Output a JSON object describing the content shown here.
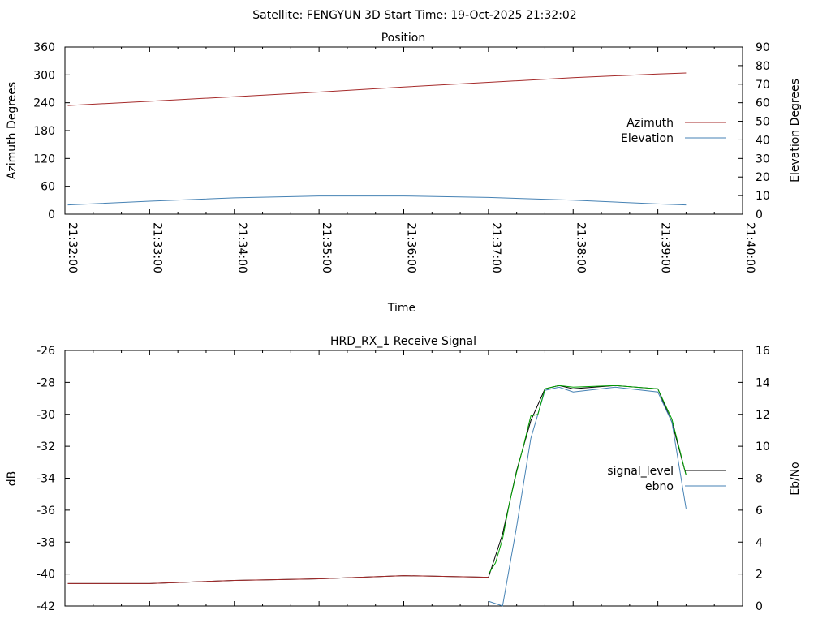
{
  "header": {
    "title": "Satellite: FENGYUN 3D    Start Time: 19-Oct-2025 21:32:02"
  },
  "chart_data": [
    {
      "type": "line",
      "title": "Position",
      "xlabel": "Time",
      "ylabel": "Azimuth Degrees",
      "y2label": "Elevation Degrees",
      "x_ticks": [
        "21:32:00",
        "21:33:00",
        "21:34:00",
        "21:35:00",
        "21:36:00",
        "21:37:00",
        "21:38:00",
        "21:39:00",
        "21:40:00"
      ],
      "xlim": [
        "21:32:00",
        "21:40:00"
      ],
      "ylim": [
        0,
        360
      ],
      "y_ticks": [
        "0",
        "60",
        "120",
        "180",
        "240",
        "300",
        "360"
      ],
      "y2lim": [
        0,
        90
      ],
      "y2_ticks": [
        "0",
        "10",
        "20",
        "30",
        "40",
        "50",
        "60",
        "70",
        "80",
        "90"
      ],
      "legend": "right",
      "series": [
        {
          "name": "Azimuth",
          "axis": "y1",
          "color": "#a52a2a",
          "x": [
            "21:32:02",
            "21:33:00",
            "21:34:00",
            "21:35:00",
            "21:36:00",
            "21:37:00",
            "21:38:00",
            "21:39:00",
            "21:39:20"
          ],
          "y": [
            234,
            243,
            253,
            263,
            274,
            284,
            294,
            302,
            304
          ]
        },
        {
          "name": "Elevation",
          "axis": "y2",
          "color": "#4682b4",
          "x": [
            "21:32:02",
            "21:33:00",
            "21:34:00",
            "21:35:00",
            "21:36:00",
            "21:37:00",
            "21:38:00",
            "21:39:00",
            "21:39:20"
          ],
          "y": [
            5,
            7,
            8.8,
            9.8,
            9.8,
            9,
            7.5,
            5.5,
            5
          ]
        }
      ]
    },
    {
      "type": "line",
      "title": "HRD_RX_1 Receive Signal",
      "xlabel": "",
      "ylabel": "dB",
      "y2label": "Eb/No",
      "xlim": [
        "21:32:00",
        "21:40:00"
      ],
      "ylim": [
        -42,
        -26
      ],
      "y_ticks": [
        "-42",
        "-40",
        "-38",
        "-36",
        "-34",
        "-32",
        "-30",
        "-28",
        "-26"
      ],
      "y2lim": [
        0,
        16
      ],
      "y2_ticks": [
        "0",
        "2",
        "4",
        "6",
        "8",
        "10",
        "12",
        "14",
        "16"
      ],
      "legend": "right",
      "series": [
        {
          "name": "signal_level",
          "axis": "y1",
          "color": "#000000",
          "x": [
            "21:32:02",
            "21:33:00",
            "21:34:00",
            "21:35:00",
            "21:36:00",
            "21:37:00",
            "21:37:10",
            "21:37:20",
            "21:37:30",
            "21:37:40",
            "21:37:50",
            "21:38:00",
            "21:38:30",
            "21:39:00",
            "21:39:10",
            "21:39:20"
          ],
          "y": [
            -40.6,
            -40.6,
            -40.4,
            -40.3,
            -40.1,
            -40.2,
            -37.5,
            -33.5,
            -30.4,
            -28.4,
            -28.2,
            -28.4,
            -28.2,
            -28.4,
            -30.5,
            -33.8
          ]
        },
        {
          "name": "ebno",
          "axis": "y2",
          "color": "#4682b4",
          "x": [
            "21:37:00",
            "21:37:10",
            "21:37:20",
            "21:37:30",
            "21:37:40",
            "21:37:50",
            "21:38:00",
            "21:38:30",
            "21:39:00",
            "21:39:10",
            "21:39:20"
          ],
          "y": [
            0.3,
            0,
            5,
            10.5,
            13.5,
            13.7,
            13.4,
            13.7,
            13.4,
            11.5,
            6.1
          ]
        },
        {
          "name": "",
          "axis": "y1",
          "color": "#00a000",
          "x": [
            "21:37:00",
            "21:37:05",
            "21:37:10",
            "21:37:15",
            "21:37:20",
            "21:37:25",
            "21:37:30",
            "21:37:35",
            "21:37:40",
            "21:37:50",
            "21:38:00",
            "21:38:30",
            "21:39:00",
            "21:39:10",
            "21:39:20"
          ],
          "y": [
            -40.0,
            -39.3,
            -37.8,
            -35.5,
            -33.6,
            -31.9,
            -30.1,
            -30.0,
            -28.4,
            -28.2,
            -28.3,
            -28.2,
            -28.4,
            -30.3,
            -33.8
          ]
        },
        {
          "name": "",
          "axis": "y1",
          "color": "#a52a2a",
          "x": [
            "21:32:02",
            "21:33:00",
            "21:34:00",
            "21:35:00",
            "21:36:00",
            "21:37:00"
          ],
          "y": [
            -40.6,
            -40.6,
            -40.4,
            -40.3,
            -40.1,
            -40.2
          ]
        }
      ]
    }
  ]
}
